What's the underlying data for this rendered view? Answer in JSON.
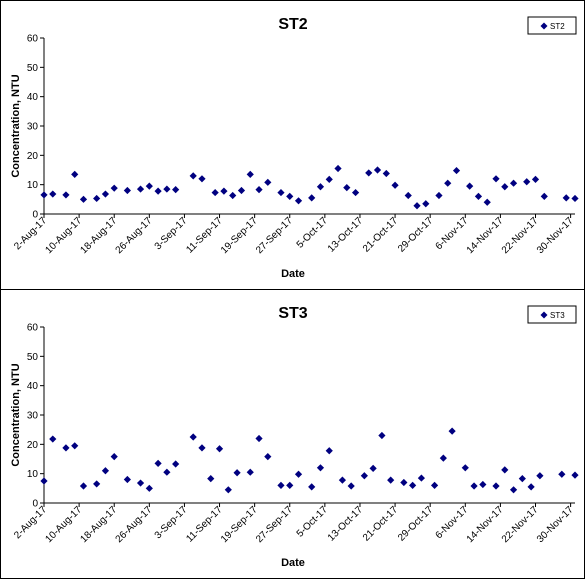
{
  "chart_data": [
    {
      "type": "scatter",
      "title": "ST2",
      "xlabel": "Date",
      "ylabel": "Concentration, NTU",
      "ylim": [
        0,
        60
      ],
      "yticks": [
        0,
        10,
        20,
        30,
        40,
        50,
        60
      ],
      "xlim": [
        "2017-08-02",
        "2017-12-01"
      ],
      "xtick_labels": [
        "2-Aug-17",
        "10-Aug-17",
        "18-Aug-17",
        "26-Aug-17",
        "3-Sep-17",
        "11-Sep-17",
        "19-Sep-17",
        "27-Sep-17",
        "5-Oct-17",
        "13-Oct-17",
        "21-Oct-17",
        "29-Oct-17",
        "6-Nov-17",
        "14-Nov-17",
        "22-Nov-17",
        "30-Nov-17"
      ],
      "xtick_dates": [
        "2017-08-02",
        "2017-08-10",
        "2017-08-18",
        "2017-08-26",
        "2017-09-03",
        "2017-09-11",
        "2017-09-19",
        "2017-09-27",
        "2017-10-05",
        "2017-10-13",
        "2017-10-21",
        "2017-10-29",
        "2017-11-06",
        "2017-11-14",
        "2017-11-22",
        "2017-11-30"
      ],
      "legend_position": "top-right",
      "marker_color": "#000080",
      "series": [
        {
          "name": "ST2",
          "x": [
            "2017-08-02",
            "2017-08-04",
            "2017-08-07",
            "2017-08-09",
            "2017-08-11",
            "2017-08-14",
            "2017-08-16",
            "2017-08-18",
            "2017-08-21",
            "2017-08-24",
            "2017-08-26",
            "2017-08-28",
            "2017-08-30",
            "2017-09-01",
            "2017-09-05",
            "2017-09-07",
            "2017-09-10",
            "2017-09-12",
            "2017-09-14",
            "2017-09-16",
            "2017-09-18",
            "2017-09-20",
            "2017-09-22",
            "2017-09-25",
            "2017-09-27",
            "2017-09-29",
            "2017-10-02",
            "2017-10-04",
            "2017-10-06",
            "2017-10-08",
            "2017-10-10",
            "2017-10-12",
            "2017-10-15",
            "2017-10-17",
            "2017-10-19",
            "2017-10-21",
            "2017-10-24",
            "2017-10-26",
            "2017-10-28",
            "2017-10-31",
            "2017-11-02",
            "2017-11-04",
            "2017-11-07",
            "2017-11-09",
            "2017-11-11",
            "2017-11-13",
            "2017-11-15",
            "2017-11-17",
            "2017-11-20",
            "2017-11-22",
            "2017-11-24",
            "2017-11-29",
            "2017-12-01"
          ],
          "y": [
            6.5,
            6.8,
            6.5,
            13.5,
            5.0,
            5.3,
            6.8,
            8.8,
            8.0,
            8.5,
            9.5,
            7.8,
            8.5,
            8.3,
            13.0,
            12.0,
            7.3,
            7.8,
            6.3,
            8.0,
            13.5,
            8.3,
            10.8,
            7.3,
            6.0,
            4.5,
            5.5,
            9.3,
            11.8,
            15.5,
            9.0,
            7.3,
            14.0,
            15.0,
            13.8,
            9.8,
            6.3,
            2.8,
            3.5,
            6.3,
            10.5,
            14.8,
            9.5,
            6.0,
            4.0,
            12.0,
            9.3,
            10.5,
            11.0,
            11.8,
            6.0,
            5.5,
            5.3
          ]
        }
      ]
    },
    {
      "type": "scatter",
      "title": "ST3",
      "xlabel": "Date",
      "ylabel": "Concentration, NTU",
      "ylim": [
        0,
        60
      ],
      "yticks": [
        0,
        10,
        20,
        30,
        40,
        50,
        60
      ],
      "xlim": [
        "2017-08-02",
        "2017-12-01"
      ],
      "xtick_labels": [
        "2-Aug-17",
        "10-Aug-17",
        "18-Aug-17",
        "26-Aug-17",
        "3-Sep-17",
        "11-Sep-17",
        "19-Sep-17",
        "27-Sep-17",
        "5-Oct-17",
        "13-Oct-17",
        "21-Oct-17",
        "29-Oct-17",
        "6-Nov-17",
        "14-Nov-17",
        "22-Nov-17",
        "30-Nov-17"
      ],
      "xtick_dates": [
        "2017-08-02",
        "2017-08-10",
        "2017-08-18",
        "2017-08-26",
        "2017-09-03",
        "2017-09-11",
        "2017-09-19",
        "2017-09-27",
        "2017-10-05",
        "2017-10-13",
        "2017-10-21",
        "2017-10-29",
        "2017-11-06",
        "2017-11-14",
        "2017-11-22",
        "2017-11-30"
      ],
      "legend_position": "top-right",
      "marker_color": "#000080",
      "series": [
        {
          "name": "ST3",
          "x": [
            "2017-08-02",
            "2017-08-04",
            "2017-08-07",
            "2017-08-09",
            "2017-08-11",
            "2017-08-14",
            "2017-08-16",
            "2017-08-18",
            "2017-08-21",
            "2017-08-24",
            "2017-08-26",
            "2017-08-28",
            "2017-08-30",
            "2017-09-01",
            "2017-09-05",
            "2017-09-07",
            "2017-09-09",
            "2017-09-11",
            "2017-09-13",
            "2017-09-15",
            "2017-09-18",
            "2017-09-20",
            "2017-09-22",
            "2017-09-25",
            "2017-09-27",
            "2017-09-29",
            "2017-10-02",
            "2017-10-04",
            "2017-10-06",
            "2017-10-09",
            "2017-10-11",
            "2017-10-14",
            "2017-10-16",
            "2017-10-18",
            "2017-10-20",
            "2017-10-23",
            "2017-10-25",
            "2017-10-27",
            "2017-10-30",
            "2017-11-01",
            "2017-11-03",
            "2017-11-06",
            "2017-11-08",
            "2017-11-10",
            "2017-11-13",
            "2017-11-15",
            "2017-11-17",
            "2017-11-19",
            "2017-11-21",
            "2017-11-23",
            "2017-11-28",
            "2017-12-01"
          ],
          "y": [
            7.5,
            21.8,
            18.8,
            19.5,
            5.8,
            6.5,
            11.0,
            15.8,
            8.0,
            6.8,
            5.0,
            13.5,
            10.5,
            13.3,
            22.5,
            18.8,
            8.3,
            18.5,
            4.5,
            10.3,
            10.5,
            22.0,
            15.8,
            6.0,
            6.0,
            9.8,
            5.5,
            12.0,
            17.8,
            7.8,
            5.8,
            9.3,
            11.8,
            23.0,
            7.8,
            7.0,
            6.0,
            8.5,
            6.0,
            15.3,
            24.5,
            12.0,
            5.8,
            6.3,
            5.8,
            11.3,
            4.5,
            8.3,
            5.5,
            9.3,
            9.8,
            9.5
          ]
        }
      ]
    }
  ]
}
